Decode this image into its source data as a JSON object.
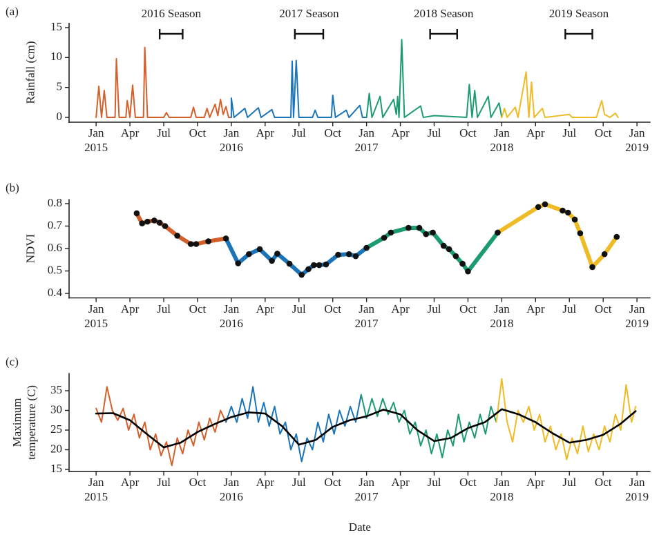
{
  "chart_data": [
    {
      "type": "line",
      "panel_label": "(a)",
      "ylabel": "Rainfall (cm)",
      "xlim": [
        2014.8,
        2019.1
      ],
      "ylim": [
        -0.8,
        15.8
      ],
      "yticks": [
        0,
        5,
        10,
        15
      ],
      "xticks": [
        {
          "value": 2015,
          "label": "Jan\n2015"
        },
        {
          "value": 2015.25,
          "label": "Apr"
        },
        {
          "value": 2015.5,
          "label": "Jul"
        },
        {
          "value": 2015.75,
          "label": "Oct"
        },
        {
          "value": 2016,
          "label": "Jan\n2016"
        },
        {
          "value": 2016.25,
          "label": "Apr"
        },
        {
          "value": 2016.5,
          "label": "Jul"
        },
        {
          "value": 2016.75,
          "label": "Oct"
        },
        {
          "value": 2017,
          "label": "Jan\n2017"
        },
        {
          "value": 2017.25,
          "label": "Apr"
        },
        {
          "value": 2017.5,
          "label": "Jul"
        },
        {
          "value": 2017.75,
          "label": "Oct"
        },
        {
          "value": 2018,
          "label": "Jan\n2018"
        },
        {
          "value": 2018.25,
          "label": "Apr"
        },
        {
          "value": 2018.5,
          "label": "Jul"
        },
        {
          "value": 2018.75,
          "label": "Oct"
        },
        {
          "value": 2019,
          "label": "Jan\n2019"
        }
      ],
      "annotations": [
        {
          "text": "2016 Season",
          "x": [
            2015.47,
            2015.64
          ]
        },
        {
          "text": "2017 Season",
          "x": [
            2016.47,
            2016.68
          ]
        },
        {
          "text": "2018 Season",
          "x": [
            2017.47,
            2017.67
          ]
        },
        {
          "text": "2019 Season",
          "x": [
            2018.47,
            2018.67
          ]
        }
      ],
      "series": [
        {
          "color": "#d3602a",
          "x": [
            2015.0,
            2015.02,
            2015.04,
            2015.06,
            2015.08,
            2015.14,
            2015.15,
            2015.17,
            2015.22,
            2015.23,
            2015.25,
            2015.27,
            2015.29,
            2015.35,
            2015.36,
            2015.38,
            2015.5,
            2015.52,
            2015.54,
            2015.7,
            2015.72,
            2015.74,
            2015.8,
            2015.82,
            2015.84,
            2015.88,
            2015.9,
            2015.92,
            2015.94,
            2015.96,
            2015.98,
            2016.0
          ],
          "values": [
            0,
            5.2,
            0,
            4.5,
            0,
            0,
            9.8,
            0,
            0,
            2.8,
            0,
            5.4,
            0,
            0,
            11.7,
            0,
            0,
            0.8,
            0,
            0,
            1.7,
            0,
            0,
            1.5,
            0,
            2.2,
            0.3,
            3.0,
            0.5,
            1.8,
            0,
            0
          ]
        },
        {
          "color": "#1b74b8",
          "x": [
            2016.0,
            2016.02,
            2016.1,
            2016.12,
            2016.2,
            2016.22,
            2016.3,
            2016.32,
            2016.44,
            2016.45,
            2016.46,
            2016.48,
            2016.5,
            2016.6,
            2016.62,
            2016.64,
            2016.74,
            2016.75,
            2016.77,
            2016.85,
            2016.87,
            2016.95,
            2016.97,
            2017.0
          ],
          "values": [
            3.2,
            0,
            1.5,
            0,
            1.6,
            0,
            1.3,
            0,
            0,
            9.4,
            0,
            9.5,
            0,
            0,
            1.2,
            0,
            0,
            3.7,
            0,
            1.2,
            0,
            2.0,
            0,
            0
          ]
        },
        {
          "color": "#1c9a72",
          "x": [
            2017.0,
            2017.02,
            2017.04,
            2017.1,
            2017.12,
            2017.2,
            2017.22,
            2017.23,
            2017.24,
            2017.26,
            2017.28,
            2017.4,
            2017.42,
            2017.5,
            2017.74,
            2017.76,
            2017.78,
            2017.8,
            2017.82,
            2017.9,
            2017.92,
            2017.98,
            2018.0
          ],
          "values": [
            0,
            4.0,
            0,
            3.5,
            0,
            3.0,
            0.5,
            3.5,
            0,
            13.0,
            0,
            1.9,
            0,
            0.3,
            0,
            5.5,
            0,
            4.5,
            0,
            3.5,
            0,
            2.4,
            0
          ]
        },
        {
          "color": "#efbb25",
          "x": [
            2018.0,
            2018.02,
            2018.04,
            2018.1,
            2018.12,
            2018.18,
            2018.2,
            2018.22,
            2018.24,
            2018.3,
            2018.32,
            2018.5,
            2018.52,
            2018.7,
            2018.72,
            2018.74,
            2018.76,
            2018.8,
            2018.84,
            2018.86
          ],
          "values": [
            0,
            1.5,
            0,
            1.7,
            0,
            7.6,
            0,
            5.9,
            0,
            1.5,
            0,
            0.5,
            0,
            0,
            1.5,
            2.8,
            0.5,
            0,
            0.7,
            0
          ]
        }
      ]
    },
    {
      "type": "line",
      "panel_label": "(b)",
      "ylabel": "NDVI",
      "markers": true,
      "xlim": [
        2014.8,
        2019.1
      ],
      "ylim": [
        0.38,
        0.82
      ],
      "yticks": [
        0.4,
        0.5,
        0.6,
        0.7,
        0.8
      ],
      "xticks": [
        {
          "value": 2015,
          "label": "Jan\n2015"
        },
        {
          "value": 2015.25,
          "label": "Apr"
        },
        {
          "value": 2015.5,
          "label": "Jul"
        },
        {
          "value": 2015.75,
          "label": "Oct"
        },
        {
          "value": 2016,
          "label": "Jan\n2016"
        },
        {
          "value": 2016.25,
          "label": "Apr"
        },
        {
          "value": 2016.5,
          "label": "Jul"
        },
        {
          "value": 2016.75,
          "label": "Oct"
        },
        {
          "value": 2017,
          "label": "Jan\n2017"
        },
        {
          "value": 2017.25,
          "label": "Apr"
        },
        {
          "value": 2017.5,
          "label": "Jul"
        },
        {
          "value": 2017.75,
          "label": "Oct"
        },
        {
          "value": 2018,
          "label": "Jan\n2018"
        },
        {
          "value": 2018.25,
          "label": "Apr"
        },
        {
          "value": 2018.5,
          "label": "Jul"
        },
        {
          "value": 2018.75,
          "label": "Oct"
        },
        {
          "value": 2019,
          "label": "Jan\n2019"
        }
      ],
      "series": [
        {
          "color": "#d3602a",
          "x": [
            2015.3,
            2015.34,
            2015.38,
            2015.43,
            2015.47,
            2015.51,
            2015.6,
            2015.7,
            2015.74,
            2015.83,
            2015.96
          ],
          "values": [
            0.757,
            0.712,
            0.72,
            0.725,
            0.715,
            0.7,
            0.657,
            0.62,
            0.62,
            0.632,
            0.645
          ]
        },
        {
          "color": "#1b74b8",
          "x": [
            2016.05,
            2016.13,
            2016.21,
            2016.3,
            2016.34,
            2016.43,
            2016.52,
            2016.57,
            2016.61,
            2016.65,
            2016.7,
            2016.79,
            2016.87,
            2016.92,
            2017.0
          ],
          "values": [
            0.534,
            0.575,
            0.597,
            0.545,
            0.577,
            0.532,
            0.483,
            0.508,
            0.526,
            0.526,
            0.529,
            0.572,
            0.575,
            0.566,
            0.603
          ]
        },
        {
          "color": "#1c9a72",
          "x": [
            2017.13,
            2017.18,
            2017.31,
            2017.39,
            2017.44,
            2017.49,
            2017.57,
            2017.61,
            2017.66,
            2017.71,
            2017.75,
            2017.97
          ],
          "values": [
            0.648,
            0.671,
            0.692,
            0.692,
            0.664,
            0.671,
            0.612,
            0.597,
            0.566,
            0.532,
            0.498,
            0.671
          ]
        },
        {
          "color": "#efbb25",
          "x": [
            2018.27,
            2018.32,
            2018.45,
            2018.49,
            2018.54,
            2018.58,
            2018.67,
            2018.76,
            2018.85
          ],
          "values": [
            0.785,
            0.797,
            0.769,
            0.76,
            0.729,
            0.668,
            0.517,
            0.575,
            0.652
          ]
        }
      ]
    },
    {
      "type": "line",
      "panel_label": "(c)",
      "ylabel": "Maximum\ntemperature (C)",
      "xlabel": "Date",
      "xlim": [
        2014.8,
        2019.1
      ],
      "ylim": [
        14.5,
        39.5
      ],
      "yticks": [
        15,
        20,
        25,
        30,
        35
      ],
      "xticks": [
        {
          "value": 2015,
          "label": "Jan\n2015"
        },
        {
          "value": 2015.25,
          "label": "Apr"
        },
        {
          "value": 2015.5,
          "label": "Jul"
        },
        {
          "value": 2015.75,
          "label": "Oct"
        },
        {
          "value": 2016,
          "label": "Jan\n2016"
        },
        {
          "value": 2016.25,
          "label": "Apr"
        },
        {
          "value": 2016.5,
          "label": "Jul"
        },
        {
          "value": 2016.75,
          "label": "Oct"
        },
        {
          "value": 2017,
          "label": "Jan\n2017"
        },
        {
          "value": 2017.25,
          "label": "Apr"
        },
        {
          "value": 2017.5,
          "label": "Jul"
        },
        {
          "value": 2017.75,
          "label": "Oct"
        },
        {
          "value": 2018,
          "label": "Jan\n2018"
        },
        {
          "value": 2018.25,
          "label": "Apr"
        },
        {
          "value": 2018.5,
          "label": "Jul"
        },
        {
          "value": 2018.75,
          "label": "Oct"
        },
        {
          "value": 2019,
          "label": "Jan\n2019"
        }
      ],
      "series": [
        {
          "color": "#d3602a",
          "x": [
            2015.0,
            2015.04,
            2015.08,
            2015.12,
            2015.16,
            2015.2,
            2015.24,
            2015.28,
            2015.32,
            2015.36,
            2015.4,
            2015.44,
            2015.48,
            2015.52,
            2015.56,
            2015.6,
            2015.64,
            2015.68,
            2015.72,
            2015.76,
            2015.8,
            2015.84,
            2015.88,
            2015.92,
            2015.96
          ],
          "values": [
            30.5,
            27,
            36,
            30,
            27.5,
            30.5,
            25,
            29,
            23,
            27,
            20,
            24,
            18.5,
            22,
            16,
            23,
            19,
            25,
            21,
            27,
            22.5,
            28,
            24.5,
            30,
            27
          ]
        },
        {
          "color": "#1b74b8",
          "x": [
            2016.0,
            2016.04,
            2016.08,
            2016.12,
            2016.16,
            2016.2,
            2016.24,
            2016.28,
            2016.32,
            2016.36,
            2016.4,
            2016.44,
            2016.48,
            2016.52,
            2016.56,
            2016.6,
            2016.64,
            2016.68,
            2016.72,
            2016.76,
            2016.8,
            2016.84,
            2016.88,
            2016.92,
            2016.96
          ],
          "values": [
            31,
            27,
            33,
            28,
            36,
            27,
            32,
            26,
            31,
            24,
            27,
            20,
            24,
            17,
            23,
            20,
            27,
            22,
            29,
            24,
            30,
            26,
            31,
            27,
            34
          ]
        },
        {
          "color": "#1c9a72",
          "x": [
            2017.0,
            2017.04,
            2017.08,
            2017.12,
            2017.16,
            2017.2,
            2017.24,
            2017.28,
            2017.32,
            2017.36,
            2017.4,
            2017.44,
            2017.48,
            2017.52,
            2017.56,
            2017.6,
            2017.64,
            2017.68,
            2017.72,
            2017.76,
            2017.8,
            2017.84,
            2017.88,
            2017.92,
            2017.96
          ],
          "values": [
            28,
            33,
            28.5,
            33,
            29,
            32,
            27,
            30,
            24,
            27,
            21,
            25,
            19,
            24,
            18,
            25,
            21,
            29,
            22,
            27,
            23,
            29,
            24,
            31,
            27
          ]
        },
        {
          "color": "#efbb25",
          "x": [
            2018.0,
            2018.04,
            2018.08,
            2018.12,
            2018.16,
            2018.2,
            2018.24,
            2018.28,
            2018.32,
            2018.36,
            2018.4,
            2018.44,
            2018.48,
            2018.52,
            2018.56,
            2018.6,
            2018.64,
            2018.68,
            2018.72,
            2018.76,
            2018.8,
            2018.84,
            2018.88,
            2018.92,
            2018.96,
            2018.99
          ],
          "values": [
            38,
            27,
            22,
            30,
            27,
            31,
            25,
            29,
            22,
            26,
            20,
            24,
            17.5,
            23,
            19,
            26,
            19.5,
            24,
            20,
            26,
            22,
            29,
            25,
            36.5,
            27,
            31
          ]
        },
        {
          "color": "#000000",
          "x": [
            2015.0,
            2015.125,
            2015.25,
            2015.375,
            2015.5,
            2015.625,
            2015.75,
            2015.875,
            2016.0,
            2016.125,
            2016.25,
            2016.375,
            2016.5,
            2016.625,
            2016.75,
            2016.875,
            2017.0,
            2017.125,
            2017.25,
            2017.375,
            2017.5,
            2017.625,
            2017.75,
            2017.875,
            2018.0,
            2018.125,
            2018.25,
            2018.375,
            2018.5,
            2018.625,
            2018.75,
            2018.875,
            2018.99
          ],
          "values": [
            29.2,
            29.3,
            27.5,
            24.0,
            20.6,
            21.8,
            24.5,
            26.5,
            28.3,
            29.5,
            29.2,
            26.0,
            21.3,
            22.5,
            25.8,
            27.5,
            28.5,
            30.2,
            29.0,
            25.0,
            22.2,
            23.0,
            25.5,
            27.0,
            30.3,
            29.0,
            27.0,
            24.2,
            21.8,
            22.5,
            23.8,
            26.5,
            29.8
          ]
        }
      ]
    }
  ]
}
